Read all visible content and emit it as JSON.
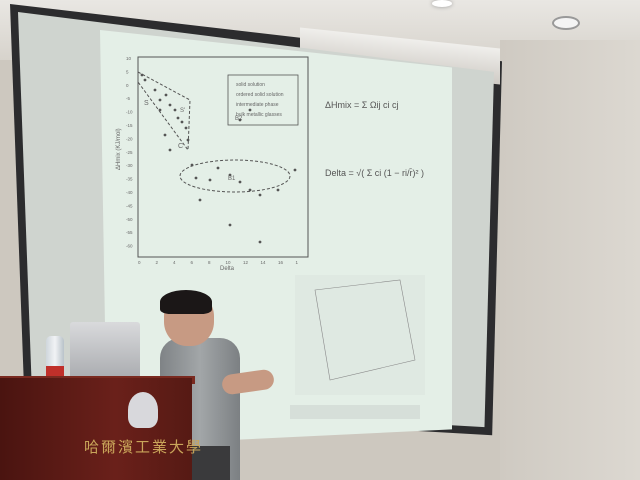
{
  "slide": {
    "chart": {
      "y_axis_label": "ΔHmix (KJ/mol)",
      "x_axis_label": "Delta",
      "y_ticks": [
        "10",
        "5",
        "0",
        "-5",
        "-10",
        "-15",
        "-20",
        "-25",
        "-30",
        "-35",
        "-40",
        "-45",
        "-50",
        "-55",
        "-60"
      ],
      "x_ticks": [
        "0",
        "2",
        "4",
        "6",
        "8",
        "10",
        "12",
        "14",
        "16",
        "1"
      ],
      "legend": [
        "solid solution",
        "ordered solid solution",
        "intermediate phase",
        "bulk metallic glasses"
      ],
      "region_labels": [
        "S",
        "S'",
        "C",
        "B2",
        "B1"
      ]
    },
    "formula_enthalpy": "ΔHmix = Σ Ωij ci cj",
    "formula_delta": "Delta = √( Σ ci (1 − ri/r̄)² )"
  },
  "podium": {
    "text": "哈爾濱工業大學"
  }
}
